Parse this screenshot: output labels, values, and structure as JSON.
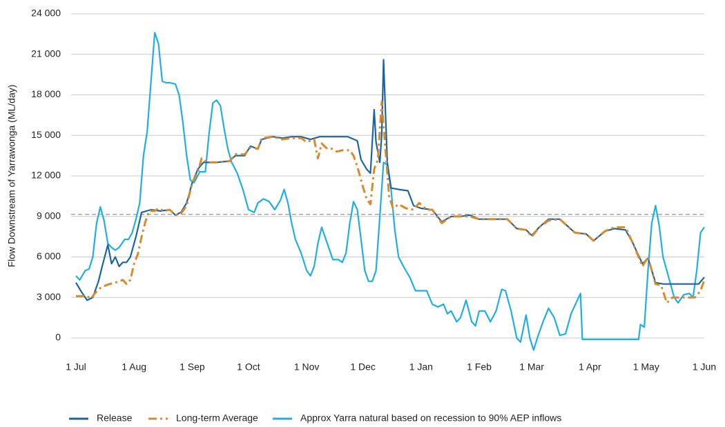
{
  "chart_data": {
    "type": "line",
    "y_label": "Flow Downstream of Yarrawonga (ML/day)",
    "xlim": [
      0,
      335
    ],
    "xticks": [
      {
        "value": 0,
        "label": "1 Jul"
      },
      {
        "value": 31,
        "label": "1 Aug"
      },
      {
        "value": 62,
        "label": "1 Sep"
      },
      {
        "value": 92,
        "label": "1 Oct"
      },
      {
        "value": 123,
        "label": "1 Nov"
      },
      {
        "value": 153,
        "label": "1 Dec"
      },
      {
        "value": 184,
        "label": "1 Jan"
      },
      {
        "value": 215,
        "label": "1 Feb"
      },
      {
        "value": 243,
        "label": "1 Mar"
      },
      {
        "value": 274,
        "label": "1 Apr"
      },
      {
        "value": 304,
        "label": "1 May"
      },
      {
        "value": 335,
        "label": "1 Jun"
      }
    ],
    "ylim": [
      0,
      24000
    ],
    "yticks": [
      0,
      {
        "value": 3000,
        "label": "3 000"
      },
      {
        "value": 6000,
        "label": "6 000"
      },
      {
        "value": 9000,
        "label": "9 000"
      },
      {
        "value": 12000,
        "label": "12 000"
      },
      {
        "value": 15000,
        "label": "15 000"
      },
      {
        "value": 18000,
        "label": "18 000"
      },
      {
        "value": 21000,
        "label": "21 000"
      },
      {
        "value": 24000,
        "label": "24 000"
      }
    ],
    "grid": true,
    "reference_line": {
      "value": 9150,
      "color": "#888888"
    },
    "legend": "bottom",
    "series": [
      {
        "name": "Release",
        "color": "#1b64a0",
        "linestyle": "solid",
        "x": [
          0,
          3,
          6,
          9,
          12,
          14,
          17,
          19,
          21,
          23,
          25,
          27,
          29,
          32,
          35,
          40,
          45,
          50,
          53,
          56,
          59,
          62,
          65,
          68,
          75,
          82,
          85,
          90,
          93,
          97,
          99,
          105,
          110,
          115,
          120,
          125,
          130,
          135,
          140,
          145,
          150,
          152,
          155,
          157,
          159,
          160,
          162,
          163,
          164,
          166,
          168,
          172,
          177,
          180,
          184,
          190,
          195,
          200,
          205,
          210,
          215,
          220,
          230,
          235,
          240,
          243,
          247,
          252,
          258,
          262,
          266,
          272,
          276,
          282,
          287,
          293,
          297,
          302,
          305,
          309,
          313,
          320,
          327,
          332,
          335
        ],
        "values": [
          4100,
          3400,
          2800,
          3000,
          4200,
          5300,
          6900,
          5500,
          6000,
          5300,
          5600,
          5600,
          6000,
          7500,
          9300,
          9500,
          9400,
          9500,
          9100,
          9300,
          10000,
          11500,
          12500,
          13000,
          13000,
          13100,
          13500,
          13500,
          14200,
          14000,
          14700,
          14900,
          14800,
          14900,
          14900,
          14700,
          14900,
          14900,
          14900,
          14900,
          14600,
          13200,
          12500,
          12200,
          16900,
          14500,
          13000,
          15000,
          20600,
          13000,
          11100,
          11000,
          10900,
          9800,
          9600,
          9500,
          8600,
          9000,
          9000,
          9100,
          8800,
          8800,
          8800,
          8100,
          8000,
          7600,
          8200,
          8800,
          8800,
          8300,
          7800,
          7700,
          7200,
          7900,
          8100,
          8000,
          7000,
          5500,
          5900,
          4100,
          4000,
          4000,
          4000,
          4000,
          4500
        ]
      },
      {
        "name": "Long-term Average",
        "color": "#d88a2a",
        "linestyle": "dash-dot",
        "x": [
          0,
          6,
          8,
          10,
          13,
          16,
          18,
          21,
          25,
          27,
          29,
          31,
          33,
          35,
          37,
          39,
          42,
          44,
          47,
          50,
          53,
          56,
          59,
          62,
          65,
          67,
          70,
          75,
          82,
          85,
          90,
          93,
          97,
          99,
          105,
          110,
          115,
          120,
          123,
          127,
          129,
          131,
          134,
          137,
          139,
          142,
          146,
          148,
          150,
          153,
          155,
          157,
          159,
          161,
          163,
          165,
          167,
          169,
          172,
          176,
          180,
          183,
          187,
          190,
          195,
          200,
          205,
          210,
          215,
          220,
          230,
          235,
          240,
          243,
          247,
          252,
          258,
          262,
          266,
          272,
          276,
          282,
          287,
          293,
          297,
          302,
          305,
          309,
          312,
          315,
          318,
          325,
          330,
          333,
          335
        ],
        "values": [
          3100,
          3100,
          2900,
          3300,
          3700,
          3900,
          4000,
          4100,
          4300,
          4000,
          4300,
          5500,
          6200,
          7500,
          8600,
          9400,
          9400,
          9600,
          9400,
          9500,
          9100,
          9200,
          9800,
          11500,
          12300,
          13300,
          13000,
          13000,
          13100,
          13600,
          13600,
          14100,
          14000,
          14800,
          14900,
          14700,
          14800,
          14800,
          14500,
          14700,
          13300,
          14400,
          14000,
          14000,
          13800,
          13900,
          13900,
          13500,
          12700,
          11200,
          10300,
          9900,
          12500,
          13200,
          17500,
          14000,
          10500,
          9600,
          9900,
          9600,
          9500,
          10000,
          9500,
          9500,
          8500,
          9000,
          9000,
          9000,
          8800,
          8800,
          8800,
          8100,
          8000,
          7500,
          8200,
          8700,
          8800,
          8300,
          7800,
          7700,
          7200,
          7900,
          8200,
          8200,
          7000,
          5300,
          6000,
          4000,
          3900,
          2600,
          3000,
          3000,
          3000,
          3500,
          4300
        ]
      },
      {
        "name": "Approx Yarra natural based on recession to 90% AEP inflows",
        "color": "#1eaee6",
        "linestyle": "solid",
        "x": [
          0,
          2,
          5,
          7,
          9,
          11,
          13,
          15,
          17,
          19,
          21,
          23,
          26,
          28,
          30,
          32,
          34,
          36,
          38,
          40,
          42,
          44,
          46,
          48,
          50,
          53,
          55,
          57,
          59,
          61,
          63,
          66,
          69,
          71,
          73,
          75,
          77,
          79,
          81,
          83,
          86,
          89,
          92,
          95,
          97,
          100,
          103,
          106,
          109,
          111,
          113,
          115,
          117,
          120,
          123,
          125,
          127,
          129,
          131,
          134,
          137,
          140,
          142,
          144,
          146,
          148,
          150,
          152,
          154,
          156,
          158,
          160,
          162,
          164,
          166,
          168,
          170,
          172,
          175,
          178,
          181,
          184,
          187,
          190,
          193,
          196,
          198,
          200,
          203,
          205,
          208,
          211,
          213,
          215,
          218,
          221,
          224,
          227,
          229,
          232,
          235,
          237,
          240,
          242,
          244,
          246,
          249,
          252,
          255,
          258,
          261,
          264,
          267,
          269,
          270,
          280,
          300,
          301,
          303,
          305,
          307,
          309,
          311,
          313,
          316,
          319,
          321,
          324,
          327,
          329,
          331,
          333,
          335
        ],
        "values": [
          4600,
          4300,
          5000,
          5100,
          6000,
          8500,
          9700,
          8700,
          7000,
          6700,
          6500,
          6700,
          7300,
          7300,
          7800,
          8800,
          10000,
          13500,
          15300,
          19000,
          22600,
          21800,
          19000,
          18900,
          18900,
          18800,
          18000,
          16000,
          13500,
          11700,
          11500,
          12300,
          12300,
          15200,
          17400,
          17600,
          17200,
          15500,
          14000,
          13000,
          12200,
          11000,
          9500,
          9300,
          10000,
          10300,
          10100,
          9500,
          10200,
          11000,
          10000,
          8500,
          7300,
          6300,
          5000,
          4600,
          5300,
          7000,
          8200,
          7000,
          5800,
          5800,
          5600,
          6300,
          8500,
          10100,
          9500,
          7300,
          5000,
          4200,
          4200,
          5000,
          9000,
          13000,
          12800,
          11000,
          8000,
          6000,
          5200,
          4500,
          3500,
          3500,
          3500,
          2500,
          2300,
          2500,
          1800,
          2000,
          1200,
          1500,
          2800,
          1200,
          900,
          2000,
          2000,
          1200,
          2000,
          3600,
          3500,
          2000,
          0,
          -300,
          1700,
          0,
          -900,
          0,
          1200,
          2200,
          1500,
          200,
          300,
          1800,
          2700,
          3300,
          -100,
          -100,
          -100,
          1000,
          800,
          5000,
          8500,
          9800,
          8300,
          6000,
          4500,
          3000,
          2600,
          3200,
          3300,
          3000,
          5000,
          7800,
          8200
        ]
      }
    ]
  }
}
